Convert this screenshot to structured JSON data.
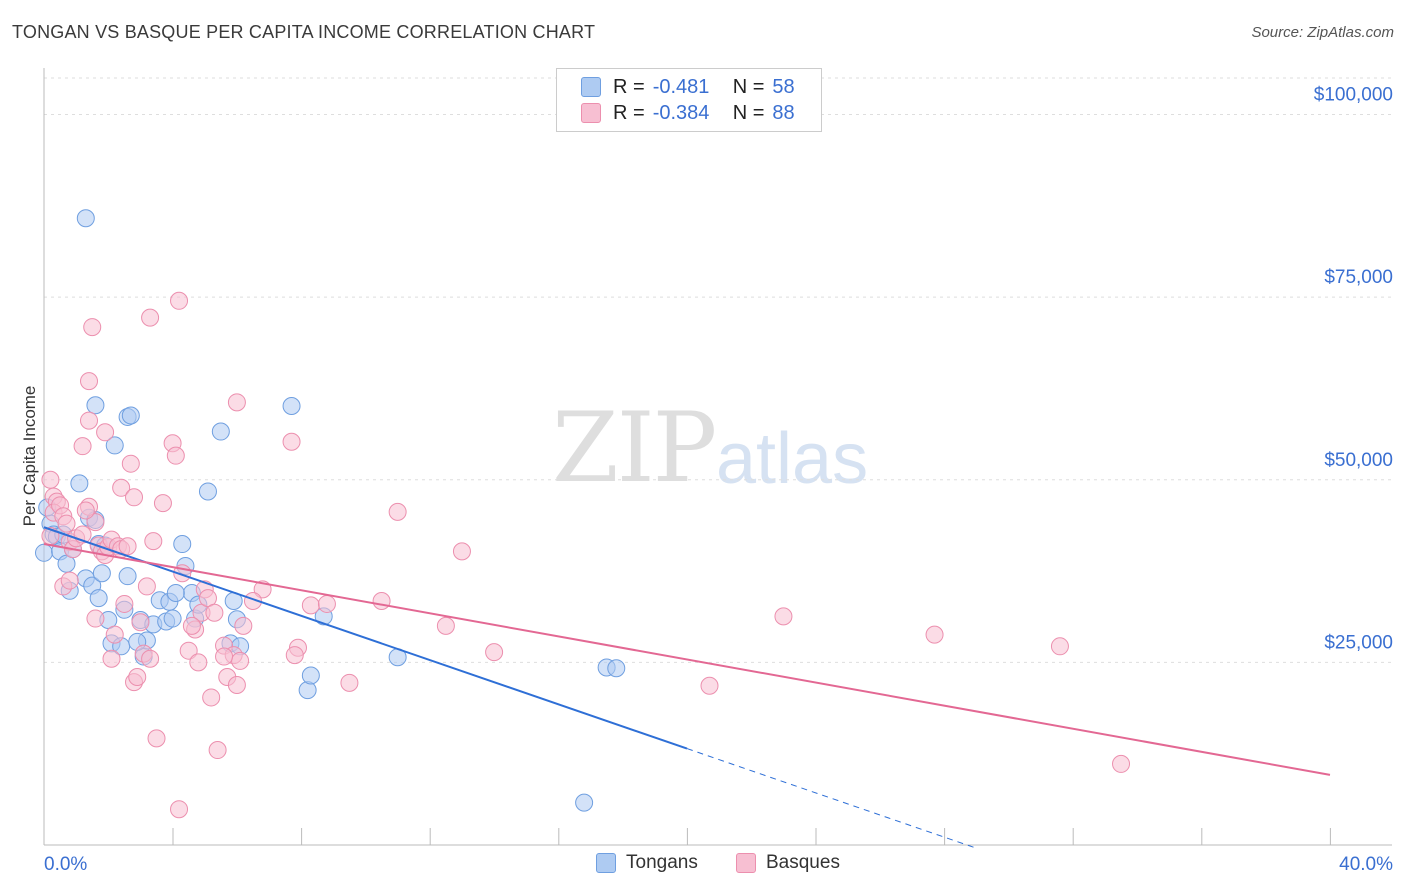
{
  "header": {
    "title": "TONGAN VS BASQUE PER CAPITA INCOME CORRELATION CHART",
    "source": "Source: ZipAtlas.com"
  },
  "watermark": {
    "zip": "ZIP",
    "atlas": "atlas"
  },
  "legend": {
    "rows": [
      {
        "r_label": "R =",
        "r_value": "-0.481",
        "n_label": "N =",
        "n_value": "58"
      },
      {
        "r_label": "R =",
        "r_value": "-0.384",
        "n_label": "N =",
        "n_value": "88"
      }
    ],
    "bottom": [
      {
        "label": "Tongans"
      },
      {
        "label": "Basques"
      }
    ]
  },
  "colors": {
    "tongan_fill": "#aecbf2",
    "tongan_stroke": "#6f9fe0",
    "tongan_line": "#2e6fd6",
    "basque_fill": "#f7bfd2",
    "basque_stroke": "#ec8fae",
    "basque_line": "#e36893",
    "tick_label": "#3a6fd1",
    "grid": "#dedede"
  },
  "chart_data": {
    "type": "scatter",
    "title": "TONGAN VS BASQUE PER CAPITA INCOME CORRELATION CHART",
    "xlabel": "",
    "ylabel": "Per Capita Income",
    "xlim": [
      0,
      40
    ],
    "ylim": [
      0,
      105000
    ],
    "x_tick_labels": [
      "0.0%",
      "40.0%"
    ],
    "y_ticks": [
      25000,
      50000,
      75000,
      100000
    ],
    "y_tick_labels": [
      "$25,000",
      "$50,000",
      "$75,000",
      "$100,000"
    ],
    "grid": true,
    "legend_position": "top-center",
    "series": [
      {
        "name": "Tongans",
        "r": -0.481,
        "n": 58,
        "trend": {
          "x0": 0,
          "y0": 43500,
          "x1": 20,
          "y1": 13200,
          "dash_to_x": 29
        },
        "points": [
          [
            1.3,
            85800
          ],
          [
            0.2,
            44000
          ],
          [
            0.3,
            42500
          ],
          [
            0.0,
            40000
          ],
          [
            0.4,
            42200
          ],
          [
            0.6,
            42500
          ],
          [
            0.5,
            40200
          ],
          [
            0.7,
            38500
          ],
          [
            0.8,
            34800
          ],
          [
            1.1,
            49500
          ],
          [
            1.4,
            44800
          ],
          [
            1.6,
            44500
          ],
          [
            1.7,
            41200
          ],
          [
            1.9,
            41000
          ],
          [
            1.3,
            36500
          ],
          [
            1.5,
            35500
          ],
          [
            1.7,
            33800
          ],
          [
            1.8,
            37200
          ],
          [
            2.0,
            30800
          ],
          [
            2.1,
            27600
          ],
          [
            2.4,
            27200
          ],
          [
            2.5,
            32200
          ],
          [
            2.6,
            36800
          ],
          [
            2.2,
            54700
          ],
          [
            2.6,
            58600
          ],
          [
            2.7,
            58800
          ],
          [
            1.6,
            60200
          ],
          [
            3.0,
            30800
          ],
          [
            3.1,
            25800
          ],
          [
            3.2,
            28000
          ],
          [
            3.4,
            30200
          ],
          [
            3.6,
            33500
          ],
          [
            3.8,
            30600
          ],
          [
            3.9,
            33300
          ],
          [
            4.0,
            31000
          ],
          [
            4.3,
            41200
          ],
          [
            4.4,
            38200
          ],
          [
            4.6,
            34500
          ],
          [
            4.7,
            31000
          ],
          [
            4.8,
            32900
          ],
          [
            5.1,
            48400
          ],
          [
            5.5,
            56600
          ],
          [
            5.8,
            27600
          ],
          [
            5.9,
            33400
          ],
          [
            6.0,
            30900
          ],
          [
            6.1,
            27200
          ],
          [
            7.7,
            60100
          ],
          [
            8.2,
            21200
          ],
          [
            8.3,
            23200
          ],
          [
            8.7,
            31300
          ],
          [
            11.0,
            25700
          ],
          [
            17.5,
            24300
          ],
          [
            17.8,
            24200
          ],
          [
            16.8,
            5800
          ],
          [
            0.1,
            46200
          ],
          [
            0.9,
            40500
          ],
          [
            2.9,
            27800
          ],
          [
            4.1,
            34500
          ]
        ]
      },
      {
        "name": "Basques",
        "r": -0.384,
        "n": 88,
        "trend": {
          "x0": 0,
          "y0": 41200,
          "x1": 40,
          "y1": 9600
        },
        "points": [
          [
            0.2,
            50000
          ],
          [
            0.3,
            47700
          ],
          [
            0.4,
            47000
          ],
          [
            0.3,
            45500
          ],
          [
            0.5,
            46500
          ],
          [
            0.6,
            45000
          ],
          [
            0.7,
            44000
          ],
          [
            0.2,
            42300
          ],
          [
            0.8,
            41500
          ],
          [
            0.9,
            40500
          ],
          [
            1.0,
            42000
          ],
          [
            0.6,
            35400
          ],
          [
            0.8,
            36200
          ],
          [
            1.2,
            42500
          ],
          [
            1.4,
            46300
          ],
          [
            1.6,
            44200
          ],
          [
            1.3,
            45800
          ],
          [
            1.7,
            41000
          ],
          [
            1.8,
            40200
          ],
          [
            1.9,
            39700
          ],
          [
            2.0,
            40800
          ],
          [
            2.1,
            41800
          ],
          [
            2.3,
            40900
          ],
          [
            2.4,
            40500
          ],
          [
            2.6,
            40900
          ],
          [
            1.4,
            63500
          ],
          [
            1.5,
            70900
          ],
          [
            1.2,
            54600
          ],
          [
            1.4,
            58100
          ],
          [
            1.9,
            56500
          ],
          [
            2.4,
            48900
          ],
          [
            2.7,
            52200
          ],
          [
            2.8,
            47600
          ],
          [
            2.5,
            33000
          ],
          [
            1.6,
            31000
          ],
          [
            2.2,
            28800
          ],
          [
            2.1,
            25500
          ],
          [
            2.8,
            22300
          ],
          [
            2.9,
            23000
          ],
          [
            3.1,
            26200
          ],
          [
            3.3,
            25500
          ],
          [
            3.2,
            35400
          ],
          [
            3.4,
            41600
          ],
          [
            3.3,
            72200
          ],
          [
            4.2,
            74500
          ],
          [
            3.7,
            46800
          ],
          [
            4.0,
            55000
          ],
          [
            4.1,
            53300
          ],
          [
            4.3,
            37200
          ],
          [
            4.5,
            26600
          ],
          [
            4.7,
            29500
          ],
          [
            4.8,
            25000
          ],
          [
            4.9,
            31800
          ],
          [
            5.0,
            35000
          ],
          [
            5.1,
            33800
          ],
          [
            5.2,
            20200
          ],
          [
            5.3,
            31800
          ],
          [
            5.4,
            13000
          ],
          [
            5.6,
            27300
          ],
          [
            5.7,
            23000
          ],
          [
            5.9,
            26000
          ],
          [
            6.0,
            21900
          ],
          [
            6.1,
            25200
          ],
          [
            6.2,
            30000
          ],
          [
            6.0,
            60600
          ],
          [
            6.8,
            35000
          ],
          [
            3.5,
            14600
          ],
          [
            4.2,
            4900
          ],
          [
            7.7,
            55200
          ],
          [
            7.9,
            27000
          ],
          [
            7.8,
            26000
          ],
          [
            8.3,
            32800
          ],
          [
            8.8,
            33000
          ],
          [
            9.5,
            22200
          ],
          [
            10.5,
            33400
          ],
          [
            11.0,
            45600
          ],
          [
            12.5,
            30000
          ],
          [
            13.0,
            40200
          ],
          [
            14.0,
            26400
          ],
          [
            20.7,
            21800
          ],
          [
            23.0,
            31300
          ],
          [
            27.7,
            28800
          ],
          [
            31.6,
            27200
          ],
          [
            33.5,
            11100
          ],
          [
            6.5,
            33400
          ],
          [
            5.6,
            25800
          ],
          [
            3.0,
            30500
          ],
          [
            4.6,
            30000
          ]
        ]
      }
    ]
  }
}
